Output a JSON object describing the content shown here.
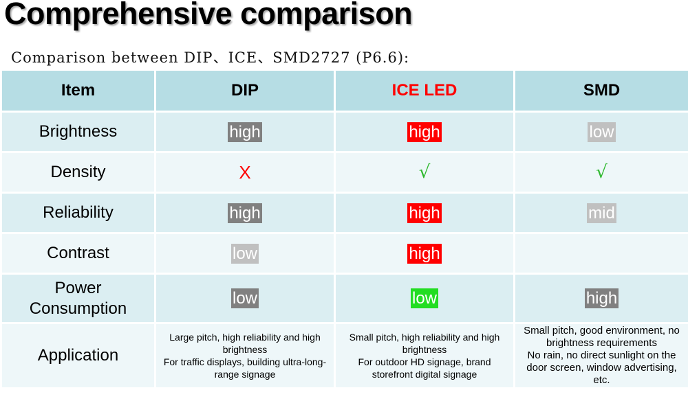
{
  "title": "Comprehensive comparison",
  "subtitle": "Comparison between DIP、ICE、SMD2727 (P6.6):",
  "table": {
    "headers": [
      "Item",
      "DIP",
      "ICE LED",
      "SMD"
    ],
    "rows": [
      {
        "item": "Brightness",
        "dip": "high",
        "ice": "high",
        "smd": "low"
      },
      {
        "item": "Density",
        "dip": "X",
        "ice": "√",
        "smd": "√"
      },
      {
        "item": "Reliability",
        "dip": "high",
        "ice": "high",
        "smd": "mid"
      },
      {
        "item": "Contrast",
        "dip": "low",
        "ice": "high",
        "smd": ""
      },
      {
        "item_line1": "Power",
        "item_line2": "Consumption",
        "dip": "low",
        "ice": "low",
        "smd": "high"
      },
      {
        "item": "Application",
        "dip_line1": "Large pitch, high reliability and high brightness",
        "dip_line2": "For traffic displays, building ultra-long-range signage",
        "ice_line1": "Small pitch, high reliability and high brightness",
        "ice_line2": "For outdoor HD signage, brand storefront digital signage",
        "smd_line1": "Small pitch, good environment, no brightness requirements",
        "smd_line2": "No rain, no direct sunlight on the door screen, window advertising, etc."
      }
    ]
  },
  "colors": {
    "header_bg": "#b6dde4",
    "row_odd_bg": "#dbeef2",
    "row_even_bg": "#eef7f9",
    "badge_dark": "#808080",
    "badge_light": "#c0c0c0",
    "badge_red": "#ff0000",
    "badge_green": "#22dd22",
    "ice_header_text": "#ff0000",
    "x_mark": "#ff0000",
    "check_mark": "#2db82d"
  }
}
